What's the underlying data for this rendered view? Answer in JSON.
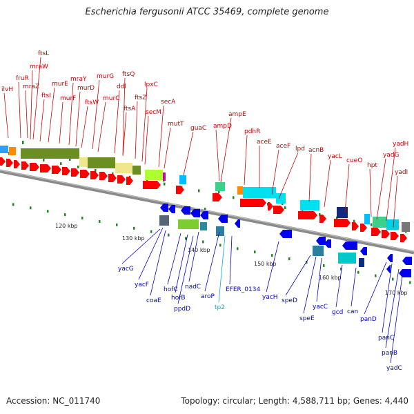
{
  "header": {
    "title": "Escherichia fergusonii ATCC 35469, complete genome"
  },
  "footer": {
    "accession": "Accession: NC_011740",
    "summary": "Topology: circular; Length: 4,588,711 bp; Genes: 4,440"
  },
  "colors": {
    "forward_label": "#cc0000",
    "reverse_label": "#0000cc",
    "special_label": "#00aadd",
    "backbone": "#888888",
    "forward_gene": "#ff0000",
    "reverse_gene": "#0000ee",
    "tick_mark": "#228822"
  },
  "scale_labels": [
    "120 kbp",
    "130 kbp",
    "140 kbp",
    "150 kbp",
    "160 kbp",
    "170 kbp"
  ],
  "forward_labels": [
    "ilvH",
    "fruR",
    "mraZ",
    "mraW",
    "ftsL",
    "ftsI",
    "murE",
    "murF",
    "mraY",
    "murD",
    "ftsW",
    "murG",
    "murC",
    "ddl",
    "ftsQ",
    "ftsA",
    "ftsZ",
    "lpxC",
    "secM",
    "secA",
    "mutT",
    "guaC",
    "ampD",
    "ampE",
    "pdhR",
    "aceE",
    "aceF",
    "lpd",
    "acnB",
    "yacL",
    "cueO",
    "hpt",
    "yadG",
    "yadH",
    "yadI"
  ],
  "reverse_labels": [
    "yacG",
    "yacF",
    "coaE",
    "hofC",
    "hofB",
    "ppdD",
    "nadC",
    "aroP",
    "tp2",
    "EFER_0134",
    "yacH",
    "speD",
    "speE",
    "yacC",
    "gcd",
    "can",
    "panD",
    "panC",
    "panB",
    "yadC"
  ]
}
